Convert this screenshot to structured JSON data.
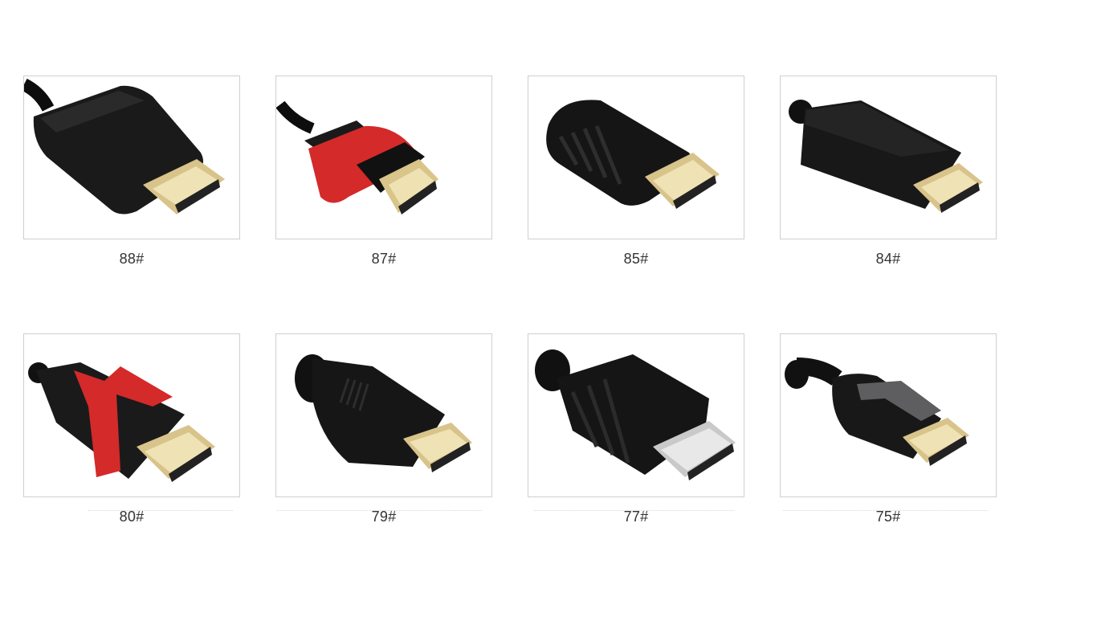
{
  "products": [
    {
      "label": "88#",
      "style": "straight-black"
    },
    {
      "label": "87#",
      "style": "red-sleeve"
    },
    {
      "label": "85#",
      "style": "ribbed-short"
    },
    {
      "label": "84#",
      "style": "long-block"
    },
    {
      "label": "80#",
      "style": "red-v-clip"
    },
    {
      "label": "79#",
      "style": "tapered-black"
    },
    {
      "label": "77#",
      "style": "ribbed-wide"
    },
    {
      "label": "75#",
      "style": "grey-inlay"
    }
  ]
}
